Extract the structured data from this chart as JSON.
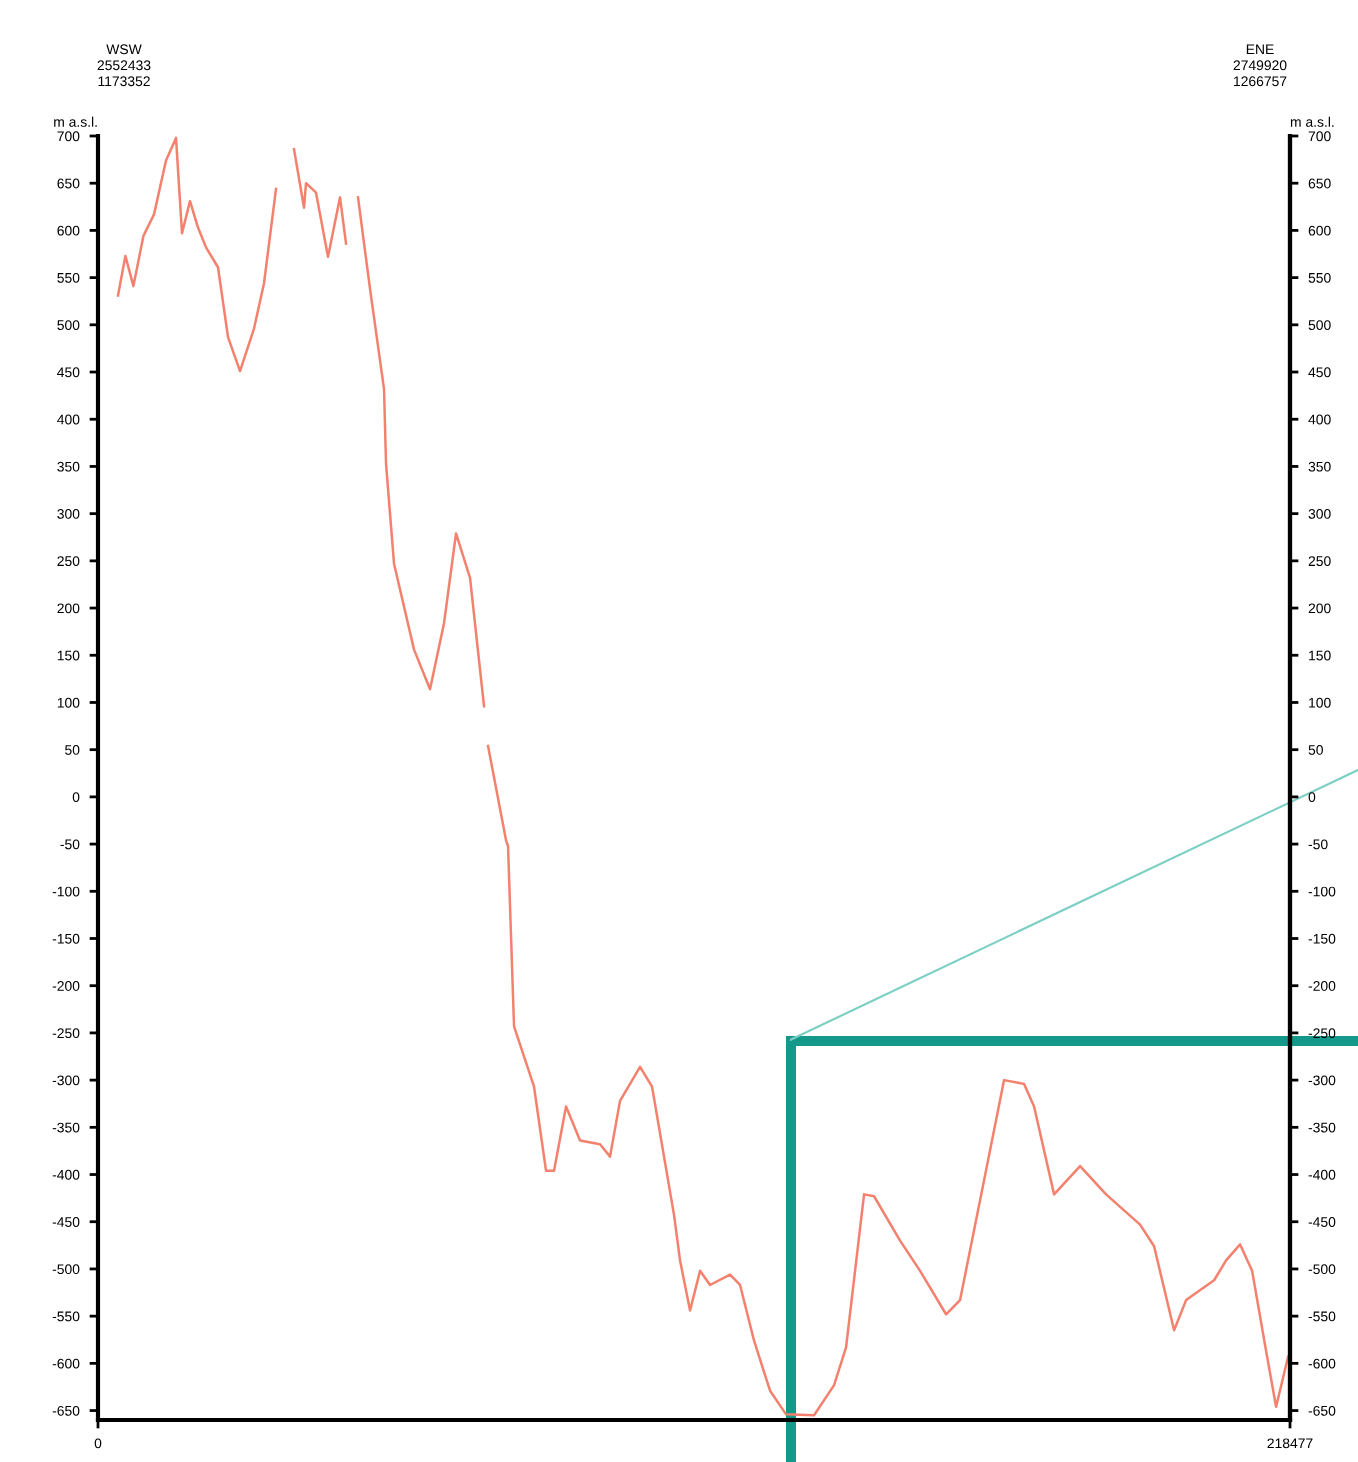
{
  "chart_data": {
    "type": "line",
    "ylabel": "m a.s.l.",
    "y2label": "m a.s.l.",
    "annotations": [
      "WSW\n2552433\n1173352",
      "ENE\n2749920\n1266757"
    ],
    "x": [
      3666,
      5022,
      6489,
      8322,
      10265,
      12464,
      14297,
      15397,
      16864,
      18330,
      19796,
      21996,
      23829,
      26029,
      28595,
      30428,
      32628,
      34000,
      35927,
      37760,
      38127,
      39960,
      42160,
      44359,
      45459,
      46500,
      47658,
      49858,
      52424,
      52790,
      54257,
      57923,
      60856,
      63422,
      65622,
      68188,
      70754,
      71100,
      71487,
      74787,
      75153,
      76253,
      79919,
      82118,
      83585,
      85785,
      88351,
      92017,
      93850,
      95683,
      99349,
      101549,
      105582,
      106681,
      108514,
      110347,
      112180,
      115846,
      117679,
      120246,
      123179,
      126111,
      131244,
      134910,
      137109,
      140409,
      142242,
      147008,
      150673,
      155439,
      158005,
      162405,
      166071,
      169737,
      171570,
      175236,
      180002,
      184768,
      191000,
      193566,
      197232,
      199432,
      204564,
      206764,
      209330,
      211529,
      214096,
      215929,
      218128
    ],
    "series": [
      {
        "color": "#f4806e",
        "values": [
          531,
          573,
          541,
          594,
          617,
          674,
          698,
          597,
          631,
          603,
          582,
          561,
          487,
          451,
          496,
          544,
          644,
          null,
          686,
          624,
          650,
          640,
          572,
          635,
          586,
          null,
          635,
          538,
          432,
          353,
          247,
          156,
          114,
          184,
          279,
          232,
          96,
          null,
          54,
          -46,
          -52,
          -243,
          -307,
          -396,
          -396,
          -328,
          -364,
          -368,
          -381,
          -322,
          -286,
          -307,
          -443,
          -491,
          -544,
          -502,
          -517,
          -506,
          -517,
          -576,
          -629,
          -654,
          -655,
          -623,
          -583,
          -421,
          -423,
          -470,
          -502,
          -548,
          -533,
          -406,
          -300,
          -304,
          -328,
          -421,
          -391,
          -421,
          -453,
          -476,
          -565,
          -533,
          -512,
          -491,
          -474,
          -502,
          -587,
          -646,
          -593
        ]
      }
    ],
    "xlim": [
      0,
      218477
    ],
    "xticks": [
      0,
      218477
    ],
    "ylim": [
      -660,
      700
    ],
    "yticks": [
      -650,
      -600,
      -550,
      -500,
      -450,
      -400,
      -350,
      -300,
      -250,
      -200,
      -150,
      -100,
      -50,
      0,
      50,
      100,
      150,
      200,
      250,
      300,
      350,
      400,
      450,
      500,
      550,
      600,
      650,
      700
    ],
    "y2lim": [
      -660,
      700
    ],
    "y2ticks": [
      -650,
      -600,
      -550,
      -500,
      -450,
      -400,
      -350,
      -300,
      -250,
      -200,
      -150,
      -100,
      -50,
      0,
      50,
      100,
      150,
      200,
      250,
      300,
      350,
      400,
      450,
      500,
      550,
      600,
      650,
      700
    ],
    "grid": false,
    "legend": false
  }
}
